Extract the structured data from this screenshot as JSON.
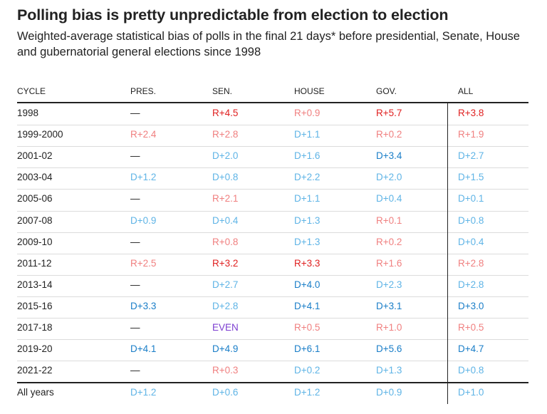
{
  "title": "Polling bias is pretty unpredictable from election to election",
  "subtitle": "Weighted-average statistical bias of polls in the final 21 days* before presidential, Senate, House and gubernatorial general elections since 1998",
  "colors": {
    "strong_r": "#e02020",
    "light_r": "#f08080",
    "strong_d": "#1a7ec8",
    "light_d": "#5fb4e6",
    "even": "#7d3fd1",
    "text": "#222222"
  },
  "chart_data": {
    "type": "table",
    "columns": [
      "CYCLE",
      "PRES.",
      "SEN.",
      "HOUSE",
      "GOV.",
      "ALL"
    ],
    "rows": [
      {
        "cycle": "1998",
        "values": [
          "—",
          "R+4.5",
          "R+0.9",
          "R+5.7",
          "R+3.8"
        ],
        "tones": [
          "none",
          "strong_r",
          "light_r",
          "strong_r",
          "strong_r"
        ]
      },
      {
        "cycle": "1999-2000",
        "values": [
          "R+2.4",
          "R+2.8",
          "D+1.1",
          "R+0.2",
          "R+1.9"
        ],
        "tones": [
          "light_r",
          "light_r",
          "light_d",
          "light_r",
          "light_r"
        ]
      },
      {
        "cycle": "2001-02",
        "values": [
          "—",
          "D+2.0",
          "D+1.6",
          "D+3.4",
          "D+2.7"
        ],
        "tones": [
          "none",
          "light_d",
          "light_d",
          "strong_d",
          "light_d"
        ]
      },
      {
        "cycle": "2003-04",
        "values": [
          "D+1.2",
          "D+0.8",
          "D+2.2",
          "D+2.0",
          "D+1.5"
        ],
        "tones": [
          "light_d",
          "light_d",
          "light_d",
          "light_d",
          "light_d"
        ]
      },
      {
        "cycle": "2005-06",
        "values": [
          "—",
          "R+2.1",
          "D+1.1",
          "D+0.4",
          "D+0.1"
        ],
        "tones": [
          "none",
          "light_r",
          "light_d",
          "light_d",
          "light_d"
        ]
      },
      {
        "cycle": "2007-08",
        "values": [
          "D+0.9",
          "D+0.4",
          "D+1.3",
          "R+0.1",
          "D+0.8"
        ],
        "tones": [
          "light_d",
          "light_d",
          "light_d",
          "light_r",
          "light_d"
        ]
      },
      {
        "cycle": "2009-10",
        "values": [
          "—",
          "R+0.8",
          "D+1.3",
          "R+0.2",
          "D+0.4"
        ],
        "tones": [
          "none",
          "light_r",
          "light_d",
          "light_r",
          "light_d"
        ]
      },
      {
        "cycle": "2011-12",
        "values": [
          "R+2.5",
          "R+3.2",
          "R+3.3",
          "R+1.6",
          "R+2.8"
        ],
        "tones": [
          "light_r",
          "strong_r",
          "strong_r",
          "light_r",
          "light_r"
        ]
      },
      {
        "cycle": "2013-14",
        "values": [
          "—",
          "D+2.7",
          "D+4.0",
          "D+2.3",
          "D+2.8"
        ],
        "tones": [
          "none",
          "light_d",
          "strong_d",
          "light_d",
          "light_d"
        ]
      },
      {
        "cycle": "2015-16",
        "values": [
          "D+3.3",
          "D+2.8",
          "D+4.1",
          "D+3.1",
          "D+3.0"
        ],
        "tones": [
          "strong_d",
          "light_d",
          "strong_d",
          "strong_d",
          "strong_d"
        ]
      },
      {
        "cycle": "2017-18",
        "values": [
          "—",
          "EVEN",
          "R+0.5",
          "R+1.0",
          "R+0.5"
        ],
        "tones": [
          "none",
          "even",
          "light_r",
          "light_r",
          "light_r"
        ]
      },
      {
        "cycle": "2019-20",
        "values": [
          "D+4.1",
          "D+4.9",
          "D+6.1",
          "D+5.6",
          "D+4.7"
        ],
        "tones": [
          "strong_d",
          "strong_d",
          "strong_d",
          "strong_d",
          "strong_d"
        ]
      },
      {
        "cycle": "2021-22",
        "values": [
          "—",
          "R+0.3",
          "D+0.2",
          "D+1.3",
          "D+0.8"
        ],
        "tones": [
          "none",
          "light_r",
          "light_d",
          "light_d",
          "light_d"
        ]
      }
    ],
    "total_row": {
      "cycle": "All years",
      "values": [
        "D+1.2",
        "D+0.6",
        "D+1.2",
        "D+0.9",
        "D+1.0"
      ],
      "tones": [
        "light_d",
        "light_d",
        "light_d",
        "light_d",
        "light_d"
      ]
    }
  }
}
